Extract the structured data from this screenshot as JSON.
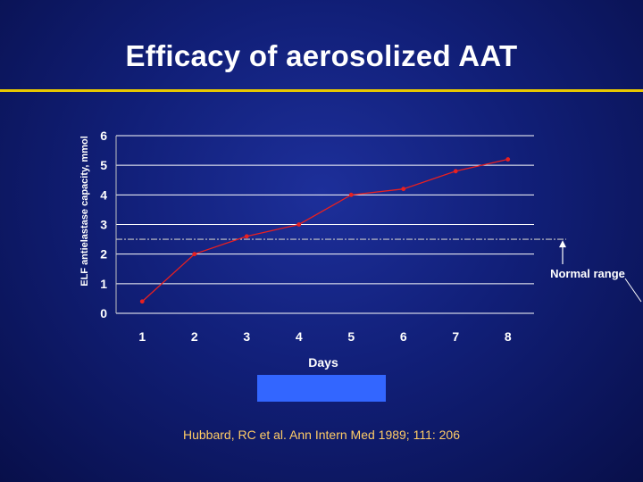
{
  "slide": {
    "title": "Efficacy of aerosolized AAT",
    "citation": "Hubbard, RC  et al.  Ann Intern Med 1989; 111: 206"
  },
  "colors": {
    "background": "#111f78",
    "title_rule": "#e8c800",
    "series_line": "#e82020",
    "reference_line": "#c8c8c8",
    "gridline": "#ffffff",
    "highlight_box": "#3366ff",
    "citation_text": "#ffcc66"
  },
  "chart_data": {
    "type": "line",
    "title": "",
    "xlabel": "Days",
    "ylabel": "ELF antielastase capacity, mmol",
    "x": [
      1,
      2,
      3,
      4,
      5,
      6,
      7,
      8
    ],
    "series": [
      {
        "values": [
          0.4,
          2.0,
          2.6,
          3.0,
          4.0,
          4.2,
          4.8,
          5.2
        ]
      }
    ],
    "xlim": [
      0.5,
      8.5
    ],
    "ylim": [
      0,
      6
    ],
    "yticks": [
      "0",
      "1",
      "2",
      "3",
      "4",
      "5",
      "6"
    ],
    "xticks": [
      "1",
      "2",
      "3",
      "4",
      "5",
      "6",
      "7",
      "8"
    ],
    "grid": true,
    "legend": "none",
    "annotations": [
      {
        "text": "Normal range",
        "y": 2.5,
        "style": "dash-dot reference line with arrow"
      }
    ]
  }
}
